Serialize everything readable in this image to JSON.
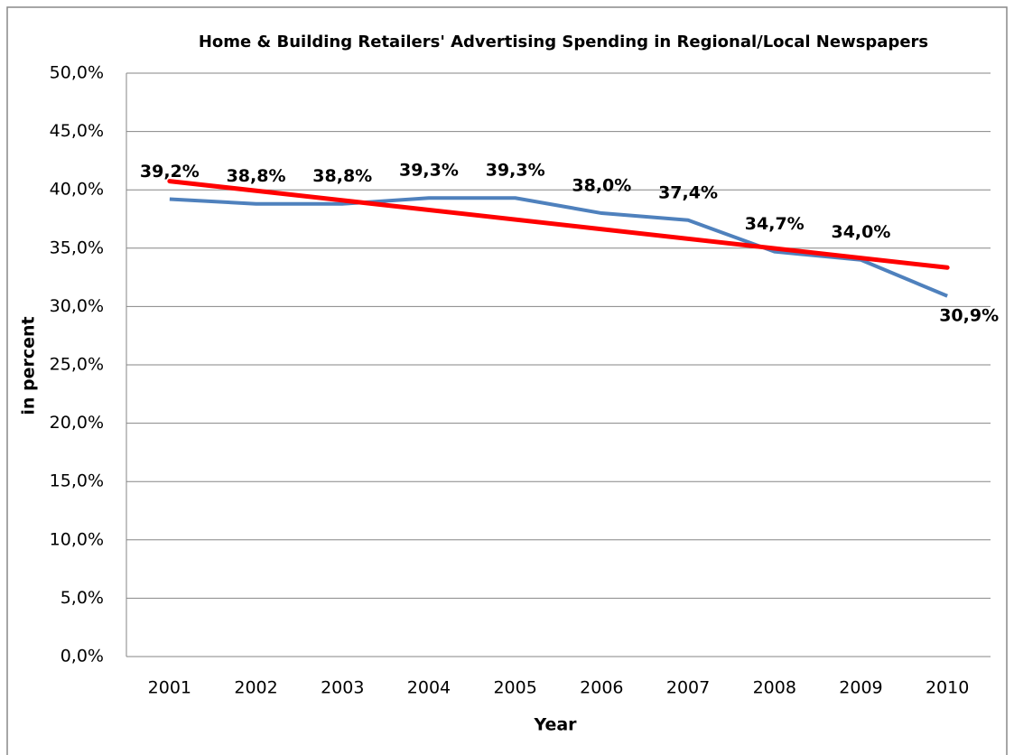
{
  "chart_data": {
    "type": "line",
    "title": "Home & Building Retailers' Advertising Spending in Regional/Local Newspapers",
    "x_label": "Year",
    "y_label": "in percent",
    "categories": [
      "2001",
      "2002",
      "2003",
      "2004",
      "2005",
      "2006",
      "2007",
      "2008",
      "2009",
      "2010"
    ],
    "series": [
      {
        "color": "#4f81bd",
        "values": [
          39.2,
          38.8,
          38.8,
          39.3,
          39.3,
          38.0,
          37.4,
          34.7,
          34.0,
          30.9
        ],
        "value_labels": [
          "39,2%",
          "38,8%",
          "38,8%",
          "39,3%",
          "39,3%",
          "38,0%",
          "37,4%",
          "34,7%",
          "34,0%",
          "30,9%"
        ]
      }
    ],
    "trendline": {
      "kind": "linear",
      "color": "#ff0000"
    },
    "ylim": [
      0,
      50
    ],
    "yticks": [
      {
        "value": 0,
        "label": "0,0%"
      },
      {
        "value": 5,
        "label": "5,0%"
      },
      {
        "value": 10,
        "label": "10,0%"
      },
      {
        "value": 15,
        "label": "15,0%"
      },
      {
        "value": 20,
        "label": "20,0%"
      },
      {
        "value": 25,
        "label": "25,0%"
      },
      {
        "value": 30,
        "label": "30,0%"
      },
      {
        "value": 35,
        "label": "35,0%"
      },
      {
        "value": 40,
        "label": "40,0%"
      },
      {
        "value": 45,
        "label": "45,0%"
      },
      {
        "value": 50,
        "label": "50,0%"
      }
    ],
    "grid": true
  }
}
